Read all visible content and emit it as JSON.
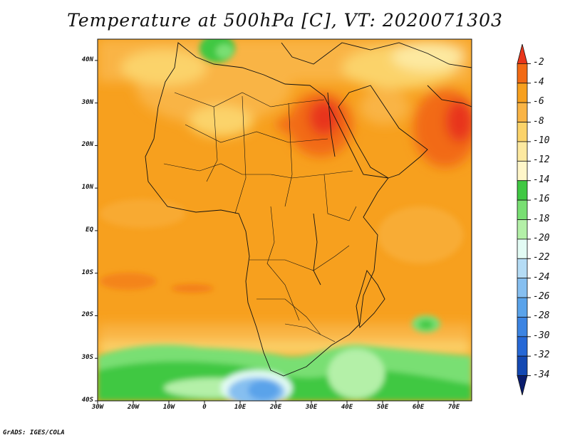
{
  "title": "Temperature at 500hPa [C], VT: 2020071303",
  "credit": "GrADS: IGES/COLA",
  "map": {
    "lon_range": [
      -30,
      75
    ],
    "lat_range": [
      -40,
      45
    ],
    "lat_ticks": [
      {
        "value": 40,
        "label": "40N"
      },
      {
        "value": 30,
        "label": "30N"
      },
      {
        "value": 20,
        "label": "20N"
      },
      {
        "value": 10,
        "label": "10N"
      },
      {
        "value": 0,
        "label": "EQ"
      },
      {
        "value": -10,
        "label": "10S"
      },
      {
        "value": -20,
        "label": "20S"
      },
      {
        "value": -30,
        "label": "30S"
      },
      {
        "value": -40,
        "label": "40S"
      }
    ],
    "lon_ticks": [
      {
        "value": -30,
        "label": "30W"
      },
      {
        "value": -20,
        "label": "20W"
      },
      {
        "value": -10,
        "label": "10W"
      },
      {
        "value": 0,
        "label": "0"
      },
      {
        "value": 10,
        "label": "10E"
      },
      {
        "value": 20,
        "label": "20E"
      },
      {
        "value": 30,
        "label": "30E"
      },
      {
        "value": 40,
        "label": "40E"
      },
      {
        "value": 50,
        "label": "50E"
      },
      {
        "value": 60,
        "label": "60E"
      },
      {
        "value": 70,
        "label": "70E"
      }
    ]
  },
  "colorbar": {
    "levels": [
      "-2",
      "-4",
      "-6",
      "-8",
      "-10",
      "-12",
      "-14",
      "-16",
      "-18",
      "-20",
      "-22",
      "-24",
      "-26",
      "-28",
      "-30",
      "-32",
      "-34"
    ],
    "colors": [
      "#e8361b",
      "#f26a14",
      "#f7a01e",
      "#f9b445",
      "#fbd36a",
      "#fde9a0",
      "#fff6c9",
      "#40c843",
      "#79df73",
      "#b4f0a8",
      "#e3fbf4",
      "#b5dcf5",
      "#86bff0",
      "#5aa3ea",
      "#3c84e2",
      "#2668d6",
      "#1449b3",
      "#0a1d6e"
    ]
  }
}
